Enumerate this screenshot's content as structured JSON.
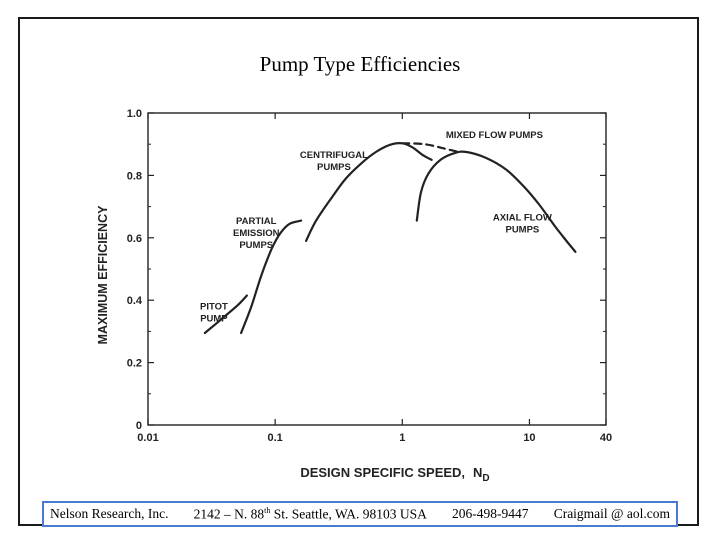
{
  "slide": {
    "title": "Pump Type Efficiencies"
  },
  "footer": {
    "company": "Nelson Research, Inc.",
    "address_number": "2142 – N. 88",
    "address_sup": "th",
    "address_rest": " St. Seattle, WA. 98103  USA",
    "phone": "206-498-9447",
    "email": "Craigmail @ aol.com",
    "border_color": "#4a7bd0"
  },
  "chart_data": {
    "type": "line",
    "title": "Pump Type Efficiencies",
    "xlabel": "DESIGN  SPECIFIC  SPEED,",
    "xlabel_symbol": "N",
    "xlabel_subscript": "D",
    "ylabel": "MAXIMUM   EFFICIENCY",
    "x_scale": "log",
    "xlim": [
      0.01,
      40
    ],
    "ylim": [
      0,
      1.0
    ],
    "x_ticks": [
      {
        "value": 0.01,
        "label": "0.01"
      },
      {
        "value": 0.1,
        "label": "0.1"
      },
      {
        "value": 1,
        "label": "1"
      },
      {
        "value": 10,
        "label": "10"
      },
      {
        "value": 40,
        "label": "40"
      }
    ],
    "y_ticks": [
      {
        "value": 0,
        "label": "0"
      },
      {
        "value": 0.2,
        "label": "0.2"
      },
      {
        "value": 0.4,
        "label": "0.4"
      },
      {
        "value": 0.6,
        "label": "0.6"
      },
      {
        "value": 0.8,
        "label": "0.8"
      },
      {
        "value": 1.0,
        "label": "1.0"
      }
    ],
    "grid": false,
    "series": [
      {
        "name": "pitot-pump",
        "label_lines": [
          "PITOT",
          "PUMP"
        ],
        "label_anchor": {
          "x": 0.033,
          "y": 0.37
        },
        "dashed": false,
        "points": [
          [
            0.028,
            0.295
          ],
          [
            0.038,
            0.34
          ],
          [
            0.051,
            0.385
          ],
          [
            0.06,
            0.415
          ]
        ]
      },
      {
        "name": "partial-emission-pumps",
        "label_lines": [
          "PARTIAL",
          "EMISSION",
          "PUMPS"
        ],
        "label_anchor": {
          "x": 0.071,
          "y": 0.645
        },
        "dashed": false,
        "points": [
          [
            0.054,
            0.295
          ],
          [
            0.065,
            0.38
          ],
          [
            0.078,
            0.48
          ],
          [
            0.094,
            0.565
          ],
          [
            0.11,
            0.615
          ],
          [
            0.13,
            0.645
          ],
          [
            0.16,
            0.655
          ]
        ]
      },
      {
        "name": "centrifugal-pumps",
        "label_lines": [
          "CENTRIFUGAL",
          "PUMPS"
        ],
        "label_anchor": {
          "x": 0.29,
          "y": 0.855
        },
        "dashed": false,
        "points": [
          [
            0.175,
            0.59
          ],
          [
            0.21,
            0.655
          ],
          [
            0.28,
            0.73
          ],
          [
            0.36,
            0.79
          ],
          [
            0.48,
            0.84
          ],
          [
            0.62,
            0.875
          ],
          [
            0.8,
            0.898
          ],
          [
            1.0,
            0.903
          ],
          [
            1.2,
            0.89
          ],
          [
            1.45,
            0.865
          ],
          [
            1.7,
            0.85
          ]
        ]
      },
      {
        "name": "transition-dashed",
        "label_lines": [],
        "dashed": true,
        "points": [
          [
            1.0,
            0.903
          ],
          [
            1.5,
            0.9
          ],
          [
            2.2,
            0.885
          ],
          [
            2.9,
            0.873
          ]
        ]
      },
      {
        "name": "mixed-flow-pumps",
        "label_lines": [
          "MIXED FLOW PUMPS"
        ],
        "label_anchor": {
          "x": 5.3,
          "y": 0.92
        },
        "dashed": false,
        "points": [
          [
            1.3,
            0.655
          ],
          [
            1.4,
            0.745
          ],
          [
            1.6,
            0.805
          ],
          [
            2.0,
            0.85
          ],
          [
            2.6,
            0.872
          ],
          [
            3.2,
            0.875
          ],
          [
            4.5,
            0.857
          ],
          [
            6.5,
            0.82
          ],
          [
            9.0,
            0.765
          ],
          [
            12.0,
            0.705
          ],
          [
            16.0,
            0.635
          ],
          [
            20.0,
            0.585
          ],
          [
            23.0,
            0.555
          ]
        ]
      }
    ],
    "annotations": [
      {
        "name": "axial-flow-pumps",
        "lines": [
          "AXIAL FLOW",
          "PUMPS"
        ],
        "x": 8.8,
        "y": 0.655
      }
    ]
  }
}
